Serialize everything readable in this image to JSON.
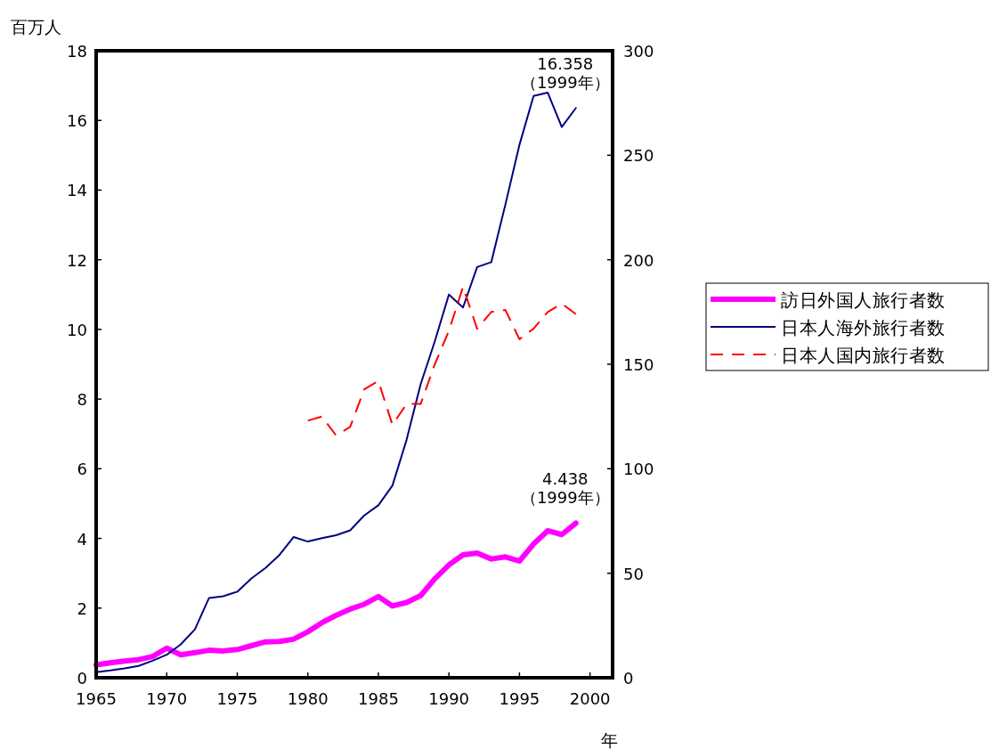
{
  "chart_data": {
    "type": "line",
    "ylabel": "百万人",
    "xlabel": "年",
    "x": [
      1965,
      1966,
      1967,
      1968,
      1969,
      1970,
      1971,
      1972,
      1973,
      1974,
      1975,
      1976,
      1977,
      1978,
      1979,
      1980,
      1981,
      1982,
      1983,
      1984,
      1985,
      1986,
      1987,
      1988,
      1989,
      1990,
      1991,
      1992,
      1993,
      1994,
      1995,
      1996,
      1997,
      1998,
      1999
    ],
    "series": [
      {
        "name": "訪日外国人旅行者数",
        "color": "#ff00ff",
        "values": [
          0.37,
          0.43,
          0.48,
          0.52,
          0.61,
          0.85,
          0.66,
          0.72,
          0.79,
          0.77,
          0.81,
          0.92,
          1.03,
          1.04,
          1.11,
          1.32,
          1.58,
          1.79,
          1.97,
          2.11,
          2.33,
          2.06,
          2.16,
          2.36,
          2.84,
          3.24,
          3.53,
          3.58,
          3.41,
          3.47,
          3.35,
          3.84,
          4.22,
          4.11,
          4.438
        ]
      },
      {
        "name": "日本人海外旅行者数",
        "color": "#000080",
        "values": [
          0.16,
          0.21,
          0.27,
          0.34,
          0.49,
          0.66,
          0.96,
          1.39,
          2.29,
          2.34,
          2.47,
          2.85,
          3.15,
          3.53,
          4.04,
          3.91,
          4.01,
          4.09,
          4.23,
          4.66,
          4.95,
          5.52,
          6.83,
          8.43,
          9.66,
          11.0,
          10.63,
          11.79,
          11.93,
          13.58,
          15.3,
          16.7,
          16.8,
          15.81,
          16.358
        ]
      },
      {
        "name": "日本人国内旅行者数",
        "color": "#ff0000",
        "axis": "y2",
        "line_style": "dashed",
        "values": [
          null,
          null,
          null,
          null,
          null,
          null,
          null,
          null,
          null,
          null,
          null,
          null,
          null,
          null,
          null,
          123,
          125,
          116,
          120,
          138,
          142,
          121,
          131,
          131,
          150,
          166,
          187,
          167,
          175,
          176,
          162,
          167,
          175,
          179,
          174
        ]
      }
    ],
    "xlim": [
      1965,
      2001.6
    ],
    "xticks": [
      1965,
      1970,
      1975,
      1980,
      1985,
      1990,
      1995,
      2000
    ],
    "ylim": [
      0,
      18
    ],
    "yticks": [
      0,
      2,
      4,
      6,
      8,
      10,
      12,
      14,
      16,
      18
    ],
    "y2lim": [
      0,
      300
    ],
    "y2ticks": [
      0,
      50,
      100,
      150,
      200,
      250,
      300
    ],
    "annotations": [
      {
        "text": "16.358\n（1999年）",
        "x": 1999,
        "y": 16.358
      },
      {
        "text": "4.438\n（1999年）",
        "x": 1999,
        "y": 4.438
      }
    ],
    "legend": "right",
    "grid": false,
    "marker": "none"
  }
}
